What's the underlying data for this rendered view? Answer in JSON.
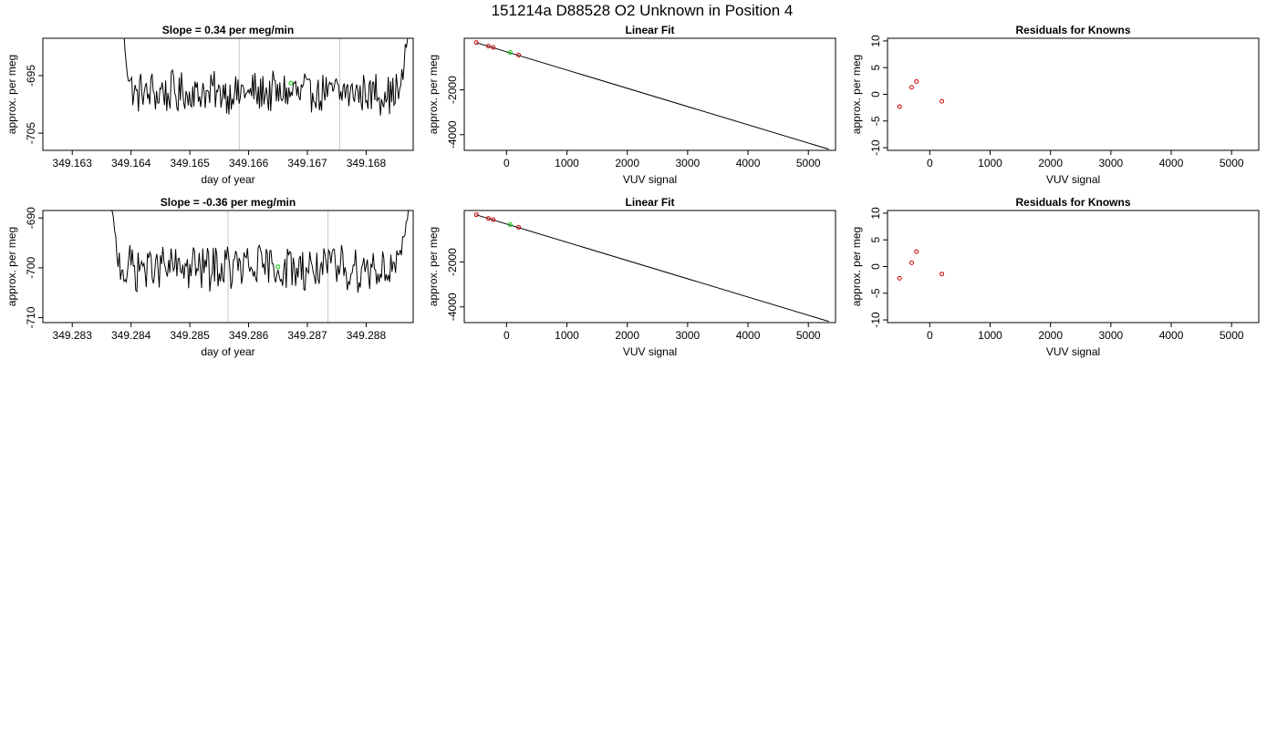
{
  "figure": {
    "title": "151214a     D88528   O2 Unknown in Position  4"
  },
  "colors": {
    "line": "#000000",
    "known_points": "#cc0000",
    "unknown_point": "#00cc00",
    "marker_lines": "#c8c8c8",
    "frame": "#000000"
  },
  "chart_data": [
    {
      "id": "time-1",
      "type": "line",
      "title": "Slope =  0.34  per meg/min",
      "xlabel": "day of year",
      "ylabel": "approx. per meg",
      "xlim": [
        349.1625,
        349.1688
      ],
      "ylim": [
        -708.0,
        -688.5
      ],
      "xticks": [
        349.163,
        349.164,
        349.165,
        349.166,
        349.167,
        349.168
      ],
      "xtick_labels": [
        "349.163",
        "349.164",
        "349.165",
        "349.166",
        "349.167",
        "349.168"
      ],
      "yticks": [
        -695,
        -705
      ],
      "ytick_labels": [
        "-695",
        "-705"
      ],
      "x_start": 349.1638,
      "x_end": 349.1688,
      "center": -698.0,
      "amplitude": 2.0,
      "edge_value": -682,
      "markers": [
        349.16584,
        349.16755
      ],
      "unknown_point": {
        "x": 349.16672,
        "y": -696.3
      }
    },
    {
      "id": "fit-1",
      "type": "scatter",
      "title": "Linear Fit",
      "xlabel": "VUV signal",
      "ylabel": "approx. per meg",
      "xlim": [
        -700,
        5450
      ],
      "ylim": [
        -4700,
        300
      ],
      "xticks": [
        0,
        1000,
        2000,
        3000,
        4000,
        5000
      ],
      "xtick_labels": [
        "0",
        "1000",
        "2000",
        "3000",
        "4000",
        "5000"
      ],
      "yticks": [
        -2000,
        -4000
      ],
      "ytick_labels": [
        "-2000",
        "-4000"
      ],
      "fit_line": {
        "x": [
          -500,
          5340
        ],
        "y": [
          105,
          -4650
        ]
      },
      "known_points": [
        {
          "x": -500,
          "y": 110
        },
        {
          "x": -300,
          "y": -50
        },
        {
          "x": -220,
          "y": -110
        },
        {
          "x": 200,
          "y": -450
        }
      ],
      "unknown_point": {
        "x": 60,
        "y": -330
      }
    },
    {
      "id": "resid-1",
      "type": "scatter",
      "title": "Residuals for Knowns",
      "xlabel": "VUV signal",
      "ylabel": "approx. per meg",
      "xlim": [
        -700,
        5450
      ],
      "ylim": [
        -10.5,
        10.5
      ],
      "xticks": [
        0,
        1000,
        2000,
        3000,
        4000,
        5000
      ],
      "xtick_labels": [
        "0",
        "1000",
        "2000",
        "3000",
        "4000",
        "5000"
      ],
      "yticks": [
        10,
        5,
        0,
        -5,
        -10
      ],
      "ytick_labels": [
        "10",
        "5",
        "0",
        "-5",
        "-10"
      ],
      "known_points": [
        {
          "x": -500,
          "y": -2.3
        },
        {
          "x": -300,
          "y": 1.3
        },
        {
          "x": -220,
          "y": 2.4
        },
        {
          "x": 200,
          "y": -1.3
        }
      ]
    },
    {
      "id": "time-2",
      "type": "line",
      "title": "Slope =  -0.36  per meg/min",
      "xlabel": "day of year",
      "ylabel": "approx. per meg",
      "xlim": [
        349.2825,
        349.2888
      ],
      "ylim": [
        -711.0,
        -688.5
      ],
      "xticks": [
        349.283,
        349.284,
        349.285,
        349.286,
        349.287,
        349.288
      ],
      "xtick_labels": [
        "349.283",
        "349.284",
        "349.285",
        "349.286",
        "349.287",
        "349.288"
      ],
      "yticks": [
        -690,
        -700,
        -710
      ],
      "ytick_labels": [
        "-690",
        "-700",
        "-710"
      ],
      "x_start": 349.2836,
      "x_end": 349.2888,
      "center": -700.0,
      "amplitude": 2.5,
      "edge_value": -683,
      "markers": [
        349.28565,
        349.28735
      ],
      "unknown_point": {
        "x": 349.2865,
        "y": -699.8
      }
    },
    {
      "id": "fit-2",
      "type": "scatter",
      "title": "Linear Fit",
      "xlabel": "VUV signal",
      "ylabel": "approx. per meg",
      "xlim": [
        -700,
        5450
      ],
      "ylim": [
        -4700,
        300
      ],
      "xticks": [
        0,
        1000,
        2000,
        3000,
        4000,
        5000
      ],
      "xtick_labels": [
        "0",
        "1000",
        "2000",
        "3000",
        "4000",
        "5000"
      ],
      "yticks": [
        -2000,
        -4000
      ],
      "ytick_labels": [
        "-2000",
        "-4000"
      ],
      "fit_line": {
        "x": [
          -500,
          5340
        ],
        "y": [
          105,
          -4650
        ]
      },
      "known_points": [
        {
          "x": -500,
          "y": 110
        },
        {
          "x": -300,
          "y": -50
        },
        {
          "x": -220,
          "y": -110
        },
        {
          "x": 200,
          "y": -450
        }
      ],
      "unknown_point": {
        "x": 60,
        "y": -330
      }
    },
    {
      "id": "resid-2",
      "type": "scatter",
      "title": "Residuals for Knowns",
      "xlabel": "VUV signal",
      "ylabel": "approx. per meg",
      "xlim": [
        -700,
        5450
      ],
      "ylim": [
        -10.5,
        10.5
      ],
      "xticks": [
        0,
        1000,
        2000,
        3000,
        4000,
        5000
      ],
      "xtick_labels": [
        "0",
        "1000",
        "2000",
        "3000",
        "4000",
        "5000"
      ],
      "yticks": [
        10,
        5,
        0,
        -5,
        -10
      ],
      "ytick_labels": [
        "10",
        "5",
        "0",
        "-5",
        "-10"
      ],
      "known_points": [
        {
          "x": -500,
          "y": -2.2
        },
        {
          "x": -300,
          "y": 0.7
        },
        {
          "x": -220,
          "y": 2.8
        },
        {
          "x": 200,
          "y": -1.4
        }
      ]
    }
  ]
}
